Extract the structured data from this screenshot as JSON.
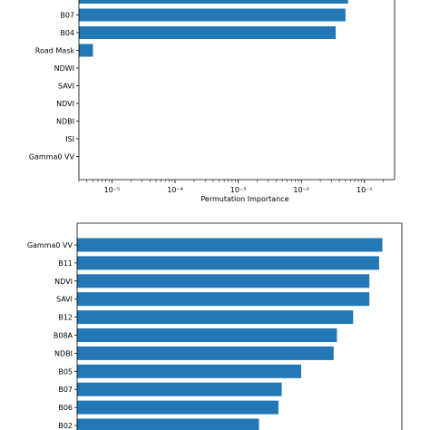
{
  "bar_color": "#2277b4",
  "chart_data": [
    {
      "type": "bar",
      "orientation": "horizontal",
      "x_scale": "log",
      "xlim": [
        3e-06,
        0.3
      ],
      "xticks": [
        1e-05,
        0.0001,
        0.001,
        0.01,
        0.1
      ],
      "xtick_labels": [
        "10⁻⁵",
        "10⁻⁴",
        "10⁻³",
        "10⁻²",
        "10⁻¹"
      ],
      "xlabel": "Permutation Importance",
      "categories": [
        "",
        "B07",
        "B04",
        "Road Mask",
        "NDWI",
        "SAVI",
        "NDVI",
        "NDBI",
        "ISI",
        "Gamma0 VV"
      ],
      "values": [
        0.055,
        0.05,
        0.035,
        5e-06,
        0,
        0,
        0,
        0,
        0,
        0
      ]
    },
    {
      "type": "bar",
      "orientation": "horizontal",
      "categories": [
        "Gamma0 VV",
        "B11",
        "NDVI",
        "SAVI",
        "B12",
        "B08A",
        "NDBI",
        "B05",
        "B07",
        "B06",
        "B02"
      ],
      "values": [
        0.94,
        0.93,
        0.9,
        0.9,
        0.85,
        0.8,
        0.79,
        0.69,
        0.63,
        0.62,
        0.56
      ],
      "xlim": [
        0,
        1
      ]
    }
  ]
}
